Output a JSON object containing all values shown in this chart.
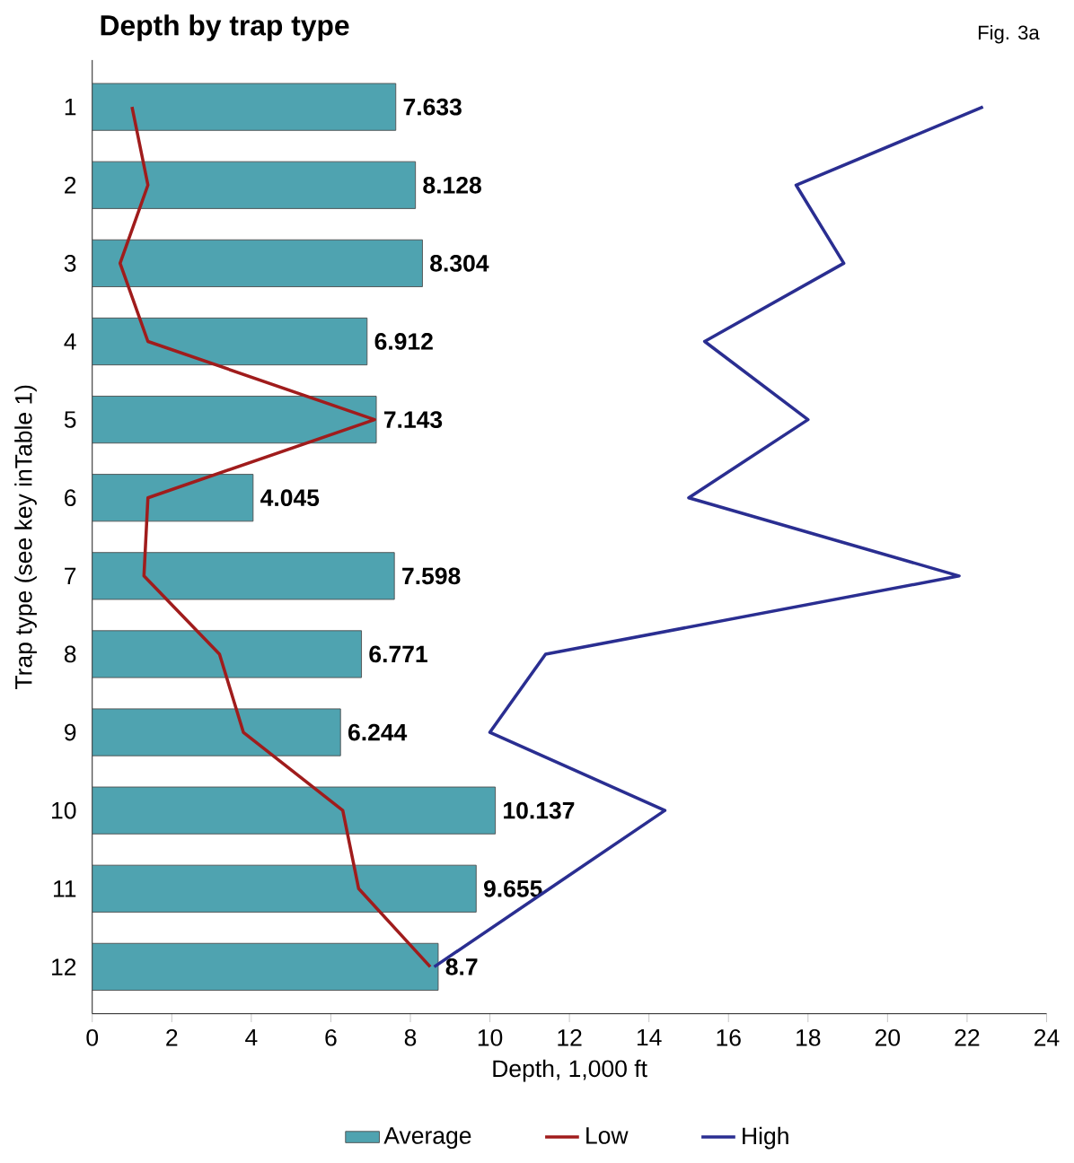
{
  "chart_data": {
    "type": "bar",
    "orientation": "horizontal",
    "title": "Depth by trap type",
    "annotations": [
      "Fig. 3a"
    ],
    "xlabel": "Depth, 1,000 ft",
    "ylabel": "Trap type (see key inTable 1)",
    "categories": [
      "1",
      "2",
      "3",
      "4",
      "5",
      "6",
      "7",
      "8",
      "9",
      "10",
      "11",
      "12"
    ],
    "series": [
      {
        "name": "Average",
        "color": "#4fa3b0",
        "values": [
          7.633,
          8.128,
          8.304,
          6.912,
          7.143,
          4.045,
          7.598,
          6.771,
          6.244,
          10.137,
          9.655,
          8.7
        ],
        "value_labels": [
          "7.633",
          "8.128",
          "8.304",
          "6.912",
          "7.143",
          "4.045",
          "7.598",
          "6.771",
          "6.244",
          "10.137",
          "9.655",
          "8.7"
        ]
      },
      {
        "name": "Low",
        "type": "line",
        "color": "#a01c1c",
        "values": [
          1.0,
          1.4,
          0.7,
          1.4,
          7.1,
          1.4,
          1.3,
          3.2,
          3.8,
          6.3,
          6.7,
          8.5
        ]
      },
      {
        "name": "High",
        "type": "line",
        "color": "#2a2e91",
        "values": [
          22.4,
          17.7,
          18.9,
          15.4,
          18.0,
          15.0,
          21.8,
          11.4,
          10.0,
          14.4,
          11.5,
          8.6
        ]
      }
    ],
    "xlim": [
      0,
      24
    ],
    "xticks": [
      0,
      2,
      4,
      6,
      8,
      10,
      12,
      14,
      16,
      18,
      20,
      22,
      24
    ],
    "legend": "bottom",
    "grid": false
  }
}
